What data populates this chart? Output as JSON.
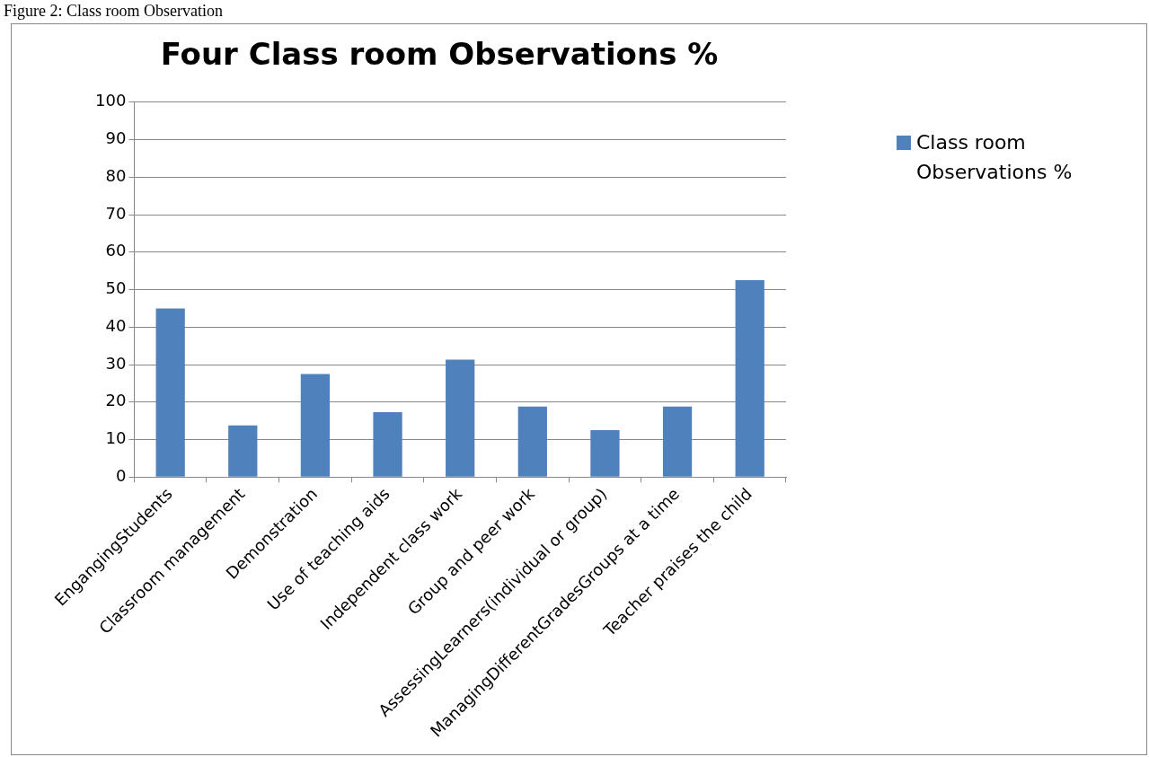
{
  "chart_data": {
    "type": "bar",
    "title": "Four Class room Observations %",
    "annotations": [
      "Figure 2: Class room Observation"
    ],
    "categories": [
      "EngangingStudents",
      "Classroom management",
      "Demonstration",
      "Use of teaching aids",
      "Independent class work",
      "Group and peer work",
      "AssessingLearners(individual or group)",
      "ManagingDifferentGradesGroups at a time",
      "Teacher praises the child"
    ],
    "series": [
      {
        "name": "Class room Observations %",
        "color": "#4f81bd",
        "values": [
          45,
          13.8,
          27.5,
          17.3,
          31.3,
          18.8,
          12.5,
          18.8,
          52.5
        ]
      }
    ],
    "ylim": [
      0,
      100
    ],
    "yticks": [
      0,
      10,
      20,
      30,
      40,
      50,
      60,
      70,
      80,
      90,
      100
    ],
    "grid": "y",
    "legend": "top right"
  }
}
